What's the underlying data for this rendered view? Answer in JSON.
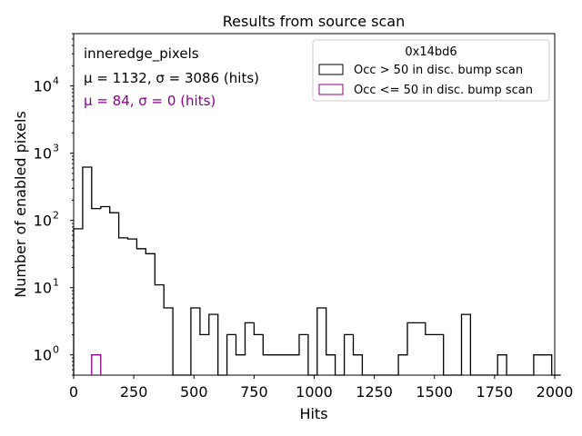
{
  "chart_data": {
    "type": "histogram",
    "title": "Results from source scan",
    "xlabel": "Hits",
    "ylabel": "Number of enabled pixels",
    "xlim": [
      0,
      2000
    ],
    "ylim_log": [
      0.5,
      60000
    ],
    "yscale": "log",
    "x_ticks": [
      0,
      250,
      500,
      750,
      1000,
      1250,
      1500,
      1750,
      2000
    ],
    "x_tick_labels": [
      "0",
      "250",
      "500",
      "750",
      "1000",
      "1250",
      "1500",
      "1750",
      "2000"
    ],
    "y_ticks": [
      1,
      10,
      100,
      1000,
      10000
    ],
    "y_tick_labels": [
      {
        "base": "10",
        "exp": "0"
      },
      {
        "base": "10",
        "exp": "1"
      },
      {
        "base": "10",
        "exp": "2"
      },
      {
        "base": "10",
        "exp": "3"
      },
      {
        "base": "10",
        "exp": "4"
      }
    ],
    "bin_width": 37.5,
    "series": [
      {
        "name": "Occ > 50 in disc. bump scan",
        "color": "#000000",
        "bin_start": 0,
        "values": [
          75,
          620,
          150,
          160,
          130,
          55,
          53,
          38,
          32,
          11,
          5,
          0,
          0,
          5,
          2,
          4,
          0,
          2,
          1,
          3,
          2,
          1,
          1,
          1,
          1,
          2,
          0,
          5,
          1,
          0,
          2,
          1,
          0,
          0,
          0,
          0,
          1,
          3,
          3,
          2,
          2,
          0,
          0,
          4,
          0,
          0,
          0,
          1,
          0,
          0,
          0,
          1,
          1,
          0
        ]
      },
      {
        "name": "Occ <= 50 in disc. bump scan",
        "color": "#8b008b",
        "bin_start": 75,
        "values": [
          1
        ]
      }
    ],
    "annotations": {
      "tag": "inneredge_pixels",
      "stats1": "μ = 1132, σ = 3086 (hits)",
      "stats2": "μ = 84, σ = 0 (hits)"
    },
    "legend": {
      "title": "0x14bd6",
      "position": "top-right",
      "entries": [
        "Occ > 50 in disc. bump scan",
        "Occ <= 50 in disc. bump scan"
      ]
    }
  }
}
